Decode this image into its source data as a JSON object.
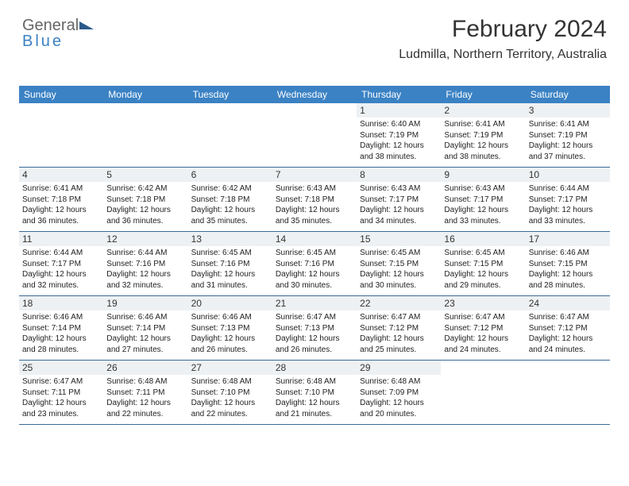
{
  "logo": {
    "text_general": "General",
    "text_blue": "Blue"
  },
  "colors": {
    "header_blue": "#3b82c4",
    "row_border": "#3b6a9a",
    "daynum_bg": "#eef1f3",
    "text_dark": "#333333",
    "text_body": "#222222",
    "logo_gray": "#666666"
  },
  "title": "February 2024",
  "location": "Ludmilla, Northern Territory, Australia",
  "weekdays": [
    "Sunday",
    "Monday",
    "Tuesday",
    "Wednesday",
    "Thursday",
    "Friday",
    "Saturday"
  ],
  "weeks": [
    [
      {
        "empty": true
      },
      {
        "empty": true
      },
      {
        "empty": true
      },
      {
        "empty": true
      },
      {
        "num": "1",
        "sunrise": "Sunrise: 6:40 AM",
        "sunset": "Sunset: 7:19 PM",
        "day1": "Daylight: 12 hours",
        "day2": "and 38 minutes."
      },
      {
        "num": "2",
        "sunrise": "Sunrise: 6:41 AM",
        "sunset": "Sunset: 7:19 PM",
        "day1": "Daylight: 12 hours",
        "day2": "and 38 minutes."
      },
      {
        "num": "3",
        "sunrise": "Sunrise: 6:41 AM",
        "sunset": "Sunset: 7:19 PM",
        "day1": "Daylight: 12 hours",
        "day2": "and 37 minutes."
      }
    ],
    [
      {
        "num": "4",
        "sunrise": "Sunrise: 6:41 AM",
        "sunset": "Sunset: 7:18 PM",
        "day1": "Daylight: 12 hours",
        "day2": "and 36 minutes."
      },
      {
        "num": "5",
        "sunrise": "Sunrise: 6:42 AM",
        "sunset": "Sunset: 7:18 PM",
        "day1": "Daylight: 12 hours",
        "day2": "and 36 minutes."
      },
      {
        "num": "6",
        "sunrise": "Sunrise: 6:42 AM",
        "sunset": "Sunset: 7:18 PM",
        "day1": "Daylight: 12 hours",
        "day2": "and 35 minutes."
      },
      {
        "num": "7",
        "sunrise": "Sunrise: 6:43 AM",
        "sunset": "Sunset: 7:18 PM",
        "day1": "Daylight: 12 hours",
        "day2": "and 35 minutes."
      },
      {
        "num": "8",
        "sunrise": "Sunrise: 6:43 AM",
        "sunset": "Sunset: 7:17 PM",
        "day1": "Daylight: 12 hours",
        "day2": "and 34 minutes."
      },
      {
        "num": "9",
        "sunrise": "Sunrise: 6:43 AM",
        "sunset": "Sunset: 7:17 PM",
        "day1": "Daylight: 12 hours",
        "day2": "and 33 minutes."
      },
      {
        "num": "10",
        "sunrise": "Sunrise: 6:44 AM",
        "sunset": "Sunset: 7:17 PM",
        "day1": "Daylight: 12 hours",
        "day2": "and 33 minutes."
      }
    ],
    [
      {
        "num": "11",
        "sunrise": "Sunrise: 6:44 AM",
        "sunset": "Sunset: 7:17 PM",
        "day1": "Daylight: 12 hours",
        "day2": "and 32 minutes."
      },
      {
        "num": "12",
        "sunrise": "Sunrise: 6:44 AM",
        "sunset": "Sunset: 7:16 PM",
        "day1": "Daylight: 12 hours",
        "day2": "and 32 minutes."
      },
      {
        "num": "13",
        "sunrise": "Sunrise: 6:45 AM",
        "sunset": "Sunset: 7:16 PM",
        "day1": "Daylight: 12 hours",
        "day2": "and 31 minutes."
      },
      {
        "num": "14",
        "sunrise": "Sunrise: 6:45 AM",
        "sunset": "Sunset: 7:16 PM",
        "day1": "Daylight: 12 hours",
        "day2": "and 30 minutes."
      },
      {
        "num": "15",
        "sunrise": "Sunrise: 6:45 AM",
        "sunset": "Sunset: 7:15 PM",
        "day1": "Daylight: 12 hours",
        "day2": "and 30 minutes."
      },
      {
        "num": "16",
        "sunrise": "Sunrise: 6:45 AM",
        "sunset": "Sunset: 7:15 PM",
        "day1": "Daylight: 12 hours",
        "day2": "and 29 minutes."
      },
      {
        "num": "17",
        "sunrise": "Sunrise: 6:46 AM",
        "sunset": "Sunset: 7:15 PM",
        "day1": "Daylight: 12 hours",
        "day2": "and 28 minutes."
      }
    ],
    [
      {
        "num": "18",
        "sunrise": "Sunrise: 6:46 AM",
        "sunset": "Sunset: 7:14 PM",
        "day1": "Daylight: 12 hours",
        "day2": "and 28 minutes."
      },
      {
        "num": "19",
        "sunrise": "Sunrise: 6:46 AM",
        "sunset": "Sunset: 7:14 PM",
        "day1": "Daylight: 12 hours",
        "day2": "and 27 minutes."
      },
      {
        "num": "20",
        "sunrise": "Sunrise: 6:46 AM",
        "sunset": "Sunset: 7:13 PM",
        "day1": "Daylight: 12 hours",
        "day2": "and 26 minutes."
      },
      {
        "num": "21",
        "sunrise": "Sunrise: 6:47 AM",
        "sunset": "Sunset: 7:13 PM",
        "day1": "Daylight: 12 hours",
        "day2": "and 26 minutes."
      },
      {
        "num": "22",
        "sunrise": "Sunrise: 6:47 AM",
        "sunset": "Sunset: 7:12 PM",
        "day1": "Daylight: 12 hours",
        "day2": "and 25 minutes."
      },
      {
        "num": "23",
        "sunrise": "Sunrise: 6:47 AM",
        "sunset": "Sunset: 7:12 PM",
        "day1": "Daylight: 12 hours",
        "day2": "and 24 minutes."
      },
      {
        "num": "24",
        "sunrise": "Sunrise: 6:47 AM",
        "sunset": "Sunset: 7:12 PM",
        "day1": "Daylight: 12 hours",
        "day2": "and 24 minutes."
      }
    ],
    [
      {
        "num": "25",
        "sunrise": "Sunrise: 6:47 AM",
        "sunset": "Sunset: 7:11 PM",
        "day1": "Daylight: 12 hours",
        "day2": "and 23 minutes."
      },
      {
        "num": "26",
        "sunrise": "Sunrise: 6:48 AM",
        "sunset": "Sunset: 7:11 PM",
        "day1": "Daylight: 12 hours",
        "day2": "and 22 minutes."
      },
      {
        "num": "27",
        "sunrise": "Sunrise: 6:48 AM",
        "sunset": "Sunset: 7:10 PM",
        "day1": "Daylight: 12 hours",
        "day2": "and 22 minutes."
      },
      {
        "num": "28",
        "sunrise": "Sunrise: 6:48 AM",
        "sunset": "Sunset: 7:10 PM",
        "day1": "Daylight: 12 hours",
        "day2": "and 21 minutes."
      },
      {
        "num": "29",
        "sunrise": "Sunrise: 6:48 AM",
        "sunset": "Sunset: 7:09 PM",
        "day1": "Daylight: 12 hours",
        "day2": "and 20 minutes."
      },
      {
        "empty": true
      },
      {
        "empty": true
      }
    ]
  ]
}
